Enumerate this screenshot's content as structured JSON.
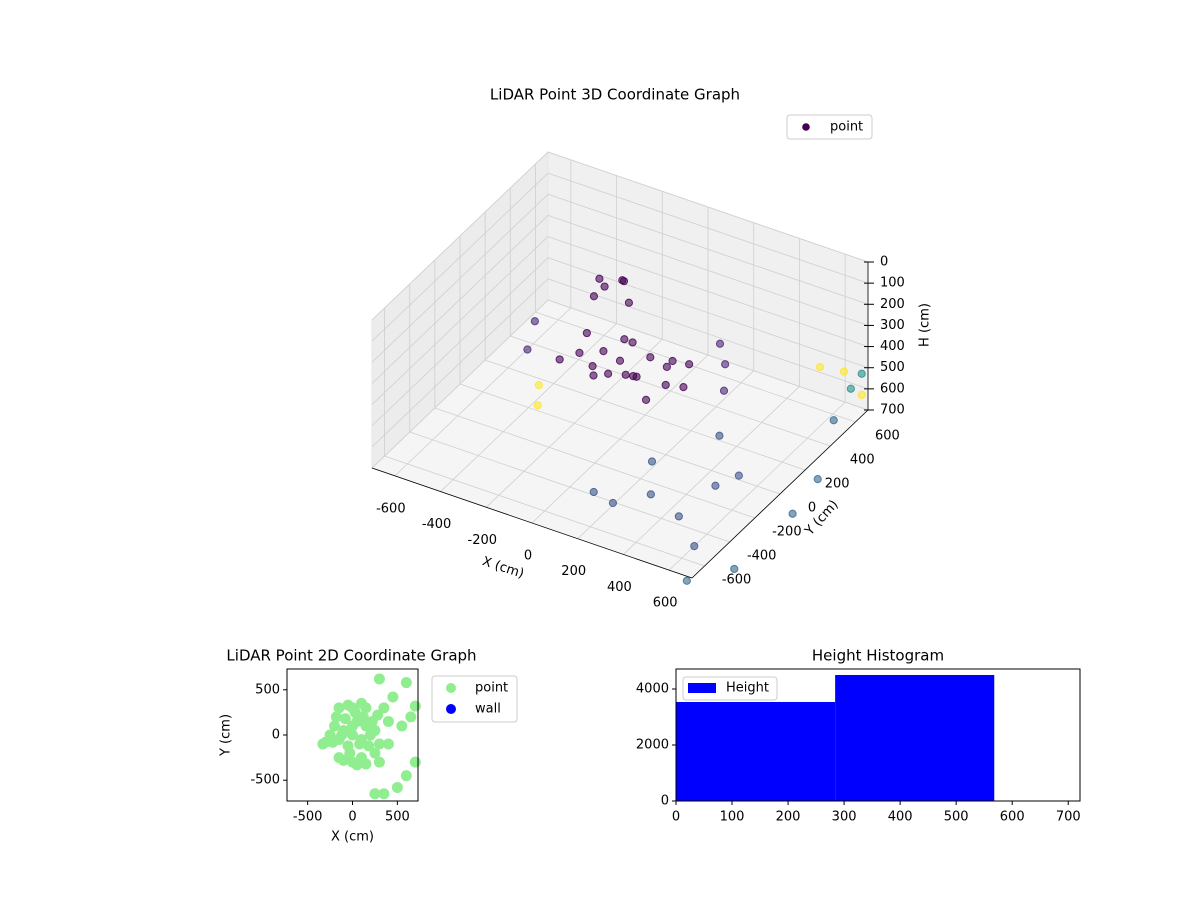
{
  "chart_data": [
    {
      "type": "scatter3d",
      "title": "LiDAR Point 3D Coordinate Graph",
      "xlabel": "X (cm)",
      "ylabel": "Y (cm)",
      "zlabel": "H (cm)",
      "xlim": [
        -700,
        700
      ],
      "ylim": [
        -700,
        700
      ],
      "zlim": [
        0,
        700
      ],
      "z_inverted": true,
      "xticks": [
        -600,
        -400,
        -200,
        0,
        200,
        400,
        600
      ],
      "yticks": [
        -600,
        -400,
        -200,
        0,
        200,
        400,
        600
      ],
      "zticks": [
        0,
        100,
        200,
        300,
        400,
        500,
        600,
        700
      ],
      "grid": true,
      "legend": "upper right",
      "series": [
        {
          "name": "point",
          "color": "#440154",
          "x": [
            0,
            -100,
            100,
            150,
            -150,
            50,
            200,
            -50,
            120,
            -200,
            250,
            0,
            80,
            -80,
            180,
            -220,
            30,
            -120,
            220,
            -30,
            -150,
            -100,
            -180,
            -120,
            -60,
            -200,
            -400,
            -350,
            300,
            350,
            400,
            94,
            200,
            300,
            450,
            500,
            380,
            520,
            600,
            250,
            650,
            700,
            700,
            720,
            660,
            600,
            -300,
            650,
            -250,
            700,
            700,
            680
          ],
          "y": [
            0,
            50,
            -50,
            100,
            -50,
            150,
            0,
            -120,
            200,
            100,
            50,
            100,
            -100,
            180,
            -120,
            -80,
            50,
            0,
            150,
            -40,
            150,
            200,
            120,
            250,
            180,
            200,
            50,
            -100,
            250,
            200,
            100,
            -380,
            -420,
            -300,
            -350,
            -150,
            100,
            0,
            -500,
            -200,
            -650,
            300,
            100,
            -400,
            500,
            500,
            -100,
            600,
            -200,
            650,
            650,
            600
          ],
          "z": [
            330,
            350,
            340,
            360,
            320,
            380,
            370,
            350,
            400,
            330,
            390,
            300,
            310,
            360,
            380,
            360,
            420,
            400,
            350,
            380,
            120,
            100,
            160,
            140,
            180,
            130,
            320,
            350,
            280,
            330,
            380,
            700,
            690,
            680,
            700,
            650,
            600,
            680,
            700,
            600,
            760,
            800,
            850,
            820,
            650,
            420,
            500,
            480,
            520,
            600,
            500,
            550
          ],
          "colors": [
            "#440154",
            "#440154",
            "#440154",
            "#440154",
            "#440154",
            "#440154",
            "#440154",
            "#440154",
            "#440154",
            "#440154",
            "#440154",
            "#440154",
            "#440154",
            "#440154",
            "#440154",
            "#440154",
            "#440154",
            "#440154",
            "#440154",
            "#440154",
            "#440154",
            "#440154",
            "#440154",
            "#440154",
            "#440154",
            "#440154",
            "#482475",
            "#482475",
            "#482475",
            "#482475",
            "#482475",
            "#3b528b",
            "#3b528b",
            "#3b528b",
            "#3b528b",
            "#3b528b",
            "#3b528b",
            "#3b528b",
            "#3b528b",
            "#3b528b",
            "#31688e",
            "#31688e",
            "#31688e",
            "#31688e",
            "#31688e",
            "#fde725",
            "#fde725",
            "#fde725",
            "#fde725",
            "#fde725",
            "#21918c",
            "#21918c"
          ]
        }
      ]
    },
    {
      "type": "scatter",
      "title": "LiDAR Point 2D Coordinate Graph",
      "xlabel": "X (cm)",
      "ylabel": "Y (cm)",
      "xlim": [
        -730,
        730
      ],
      "ylim": [
        -730,
        730
      ],
      "xticks": [
        -500,
        0,
        500
      ],
      "yticks": [
        -500,
        0,
        500
      ],
      "legend": "outside right",
      "series": [
        {
          "name": "point",
          "color": "#90ee90",
          "x": [
            0,
            -100,
            100,
            150,
            -150,
            50,
            200,
            -50,
            120,
            -200,
            250,
            0,
            80,
            -80,
            180,
            -220,
            30,
            -120,
            220,
            -30,
            0,
            100,
            -100,
            50,
            150,
            -50,
            250,
            -180,
            -250,
            300,
            280,
            -300,
            0,
            150,
            -150,
            100,
            -150,
            -330,
            300,
            600,
            450,
            700,
            650,
            550,
            350,
            400,
            350,
            250,
            500,
            600,
            700,
            400,
            300
          ],
          "y": [
            0,
            50,
            -50,
            100,
            -50,
            150,
            0,
            -120,
            200,
            100,
            50,
            100,
            -100,
            180,
            -120,
            -80,
            250,
            0,
            150,
            -200,
            300,
            -250,
            -280,
            -330,
            300,
            330,
            -200,
            200,
            0,
            -100,
            220,
            -80,
            -300,
            -320,
            -250,
            350,
            300,
            -100,
            620,
            580,
            420,
            320,
            200,
            100,
            300,
            150,
            -650,
            -650,
            -580,
            -450,
            -300,
            -100,
            -300
          ]
        },
        {
          "name": "wall",
          "color": "#0000ff",
          "x": [],
          "y": []
        }
      ]
    },
    {
      "type": "histogram",
      "title": "Height Histogram",
      "xlim": [
        0,
        721
      ],
      "ylim": [
        0,
        4714
      ],
      "xticks": [
        0,
        100,
        200,
        300,
        400,
        500,
        600,
        700
      ],
      "yticks": [
        0,
        2000,
        4000
      ],
      "legend": "upper left",
      "series": [
        {
          "name": "Height",
          "color": "#0000ff",
          "bins": [
            0,
            284,
            568
          ],
          "counts": [
            3536,
            4500
          ]
        }
      ]
    }
  ]
}
